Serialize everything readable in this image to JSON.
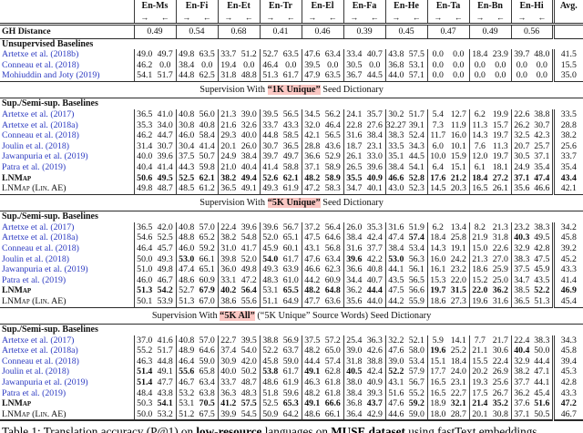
{
  "table": {
    "pairs": [
      "En-Ms",
      "En-Fi",
      "En-Et",
      "En-Tr",
      "En-El",
      "En-Fa",
      "En-He",
      "En-Ta",
      "En-Bn",
      "En-Hi"
    ],
    "avg_label": "Avg.",
    "arrow_right": "→",
    "arrow_left": "←",
    "gh": {
      "label": "GH Distance",
      "values": [
        "0.49",
        "0.54",
        "0.68",
        "0.41",
        "0.46",
        "0.39",
        "0.45",
        "0.47",
        "0.49",
        "0.56"
      ]
    },
    "stream": [
      {
        "type": "group",
        "label": "Unsupervised Baselines"
      },
      {
        "type": "row",
        "label": "Artetxe et al. (2018b)",
        "cite": true,
        "v": [
          "49.0",
          "49.7",
          "49.8",
          "63.5",
          "33.7",
          "51.2",
          "52.7",
          "63.5",
          "47.6",
          "63.4",
          "33.4",
          "40.7",
          "43.8",
          "57.5",
          "0.0",
          "0.0",
          "18.4",
          "23.9",
          "39.7",
          "48.0",
          "41.5"
        ]
      },
      {
        "type": "row",
        "label": "Conneau et al. (2018)",
        "cite": true,
        "v": [
          "46.2",
          "0.0",
          "38.4",
          "0.0",
          "19.4",
          "0.0",
          "46.4",
          "0.0",
          "39.5",
          "0.0",
          "30.5",
          "0.0",
          "36.8",
          "53.1",
          "0.0",
          "0.0",
          "0.0",
          "0.0",
          "0.0",
          "0.0",
          "15.5"
        ]
      },
      {
        "type": "row",
        "label": "Mohiuddin and Joty (2019)",
        "cite": true,
        "v": [
          "54.1",
          "51.7",
          "44.8",
          "62.5",
          "31.8",
          "48.8",
          "51.3",
          "61.7",
          "47.9",
          "63.5",
          "36.7",
          "44.5",
          "44.0",
          "57.1",
          "0.0",
          "0.0",
          "0.0",
          "0.0",
          "0.0",
          "0.0",
          "35.0"
        ]
      },
      {
        "type": "banner",
        "pre": "Supervision With ",
        "hl": "“1K Unique”",
        "post": " Seed Dictionary"
      },
      {
        "type": "group",
        "label": "Sup./Semi-sup. Baselines"
      },
      {
        "type": "row",
        "label": "Artetxe et al. (2017)",
        "cite": true,
        "v": [
          "36.5",
          "41.0",
          "40.8",
          "56.0",
          "21.3",
          "39.0",
          "39.5",
          "56.5",
          "34.5",
          "56.2",
          "24.1",
          "35.7",
          "30.2",
          "51.7",
          "5.4",
          "12.7",
          "6.2",
          "19.9",
          "22.6",
          "38.8",
          "33.5"
        ]
      },
      {
        "type": "row",
        "label": "Artetxe et al. (2018a)",
        "cite": true,
        "v": [
          "35.3",
          "34.0",
          "30.8",
          "40.8",
          "21.6",
          "32.6",
          "33.7",
          "43.3",
          "32.0",
          "46.4",
          "22.8",
          "27.6",
          "32.27",
          "39.1",
          "7.3",
          "11.9",
          "11.3",
          "15.7",
          "26.2",
          "30.7",
          "28.8"
        ]
      },
      {
        "type": "row",
        "label": "Conneau et al. (2018)",
        "cite": true,
        "v": [
          "46.2",
          "44.7",
          "46.0",
          "58.4",
          "29.3",
          "40.0",
          "44.8",
          "58.5",
          "42.1",
          "56.5",
          "31.6",
          "38.4",
          "38.3",
          "52.4",
          "11.7",
          "16.0",
          "14.3",
          "19.7",
          "32.5",
          "42.3",
          "38.2"
        ]
      },
      {
        "type": "row",
        "label": "Joulin et al. (2018)",
        "cite": true,
        "v": [
          "31.4",
          "30.7",
          "30.4",
          "41.4",
          "20.1",
          "26.0",
          "30.7",
          "36.5",
          "28.8",
          "43.6",
          "18.7",
          "23.1",
          "33.5",
          "34.3",
          "6.0",
          "10.1",
          "7.6",
          "11.3",
          "20.7",
          "25.7",
          "25.6"
        ]
      },
      {
        "type": "row",
        "label": "Jawanpuria et al. (2019)",
        "cite": true,
        "v": [
          "40.0",
          "39.6",
          "37.5",
          "50.7",
          "24.9",
          "38.4",
          "39.7",
          "49.7",
          "36.6",
          "52.9",
          "26.1",
          "33.0",
          "35.1",
          "44.5",
          "10.0",
          "15.9",
          "12.0",
          "19.7",
          "30.5",
          "37.1",
          "33.7"
        ]
      },
      {
        "type": "row",
        "label": "Patra et al. (2019)",
        "cite": true,
        "v": [
          "40.4",
          "41.4",
          "44.3",
          "59.8",
          "21.0",
          "40.4",
          "41.4",
          "58.8",
          "37.1",
          "58.9",
          "26.5",
          "39.6",
          "38.4",
          "54.1",
          "6.4",
          "15.1",
          "6.1",
          "18.1",
          "24.9",
          "35.4",
          "35.4"
        ]
      },
      {
        "type": "row",
        "label": "LNMap",
        "sc": true,
        "bold_label": true,
        "v": [
          "50.6",
          "49.5",
          "52.5",
          "62.1",
          "38.2",
          "49.4",
          "52.6",
          "62.1",
          "48.2",
          "58.9",
          "35.5",
          "40.9",
          "46.6",
          "52.8",
          "17.6",
          "21.2",
          "18.4",
          "27.2",
          "37.1",
          "47.4",
          "43.4"
        ],
        "b": [
          0,
          1,
          2,
          3,
          4,
          5,
          6,
          7,
          8,
          9,
          10,
          11,
          12,
          13,
          14,
          15,
          16,
          17,
          18,
          19,
          20
        ]
      },
      {
        "type": "row",
        "label": "LNMap (Lin. AE)",
        "sc": true,
        "v": [
          "49.8",
          "48.7",
          "48.5",
          "61.2",
          "36.5",
          "49.1",
          "49.3",
          "61.9",
          "47.2",
          "58.3",
          "34.7",
          "40.1",
          "43.0",
          "52.3",
          "14.5",
          "20.3",
          "16.5",
          "26.1",
          "35.6",
          "46.6",
          "42.1"
        ]
      },
      {
        "type": "banner",
        "pre": "Supervision With ",
        "hl": "“5K Unique”",
        "post": " Seed Dictionary"
      },
      {
        "type": "group",
        "label": "Sup./Semi-sup. Baselines"
      },
      {
        "type": "row",
        "label": "Artetxe et al. (2017)",
        "cite": true,
        "v": [
          "36.5",
          "42.0",
          "40.8",
          "57.0",
          "22.4",
          "39.6",
          "39.6",
          "56.7",
          "37.2",
          "56.4",
          "26.0",
          "35.3",
          "31.6",
          "51.9",
          "6.2",
          "13.4",
          "8.2",
          "21.3",
          "23.2",
          "38.3",
          "34.2"
        ]
      },
      {
        "type": "row",
        "label": "Artetxe et al. (2018a)",
        "cite": true,
        "v": [
          "54.6",
          "52.5",
          "48.8",
          "65.2",
          "38.2",
          "54.8",
          "52.0",
          "65.1",
          "47.5",
          "64.6",
          "38.4",
          "42.4",
          "47.4",
          "57.4",
          "18.4",
          "25.8",
          "21.9",
          "31.8",
          "40.3",
          "49.5",
          "45.8"
        ],
        "b": [
          13,
          18
        ]
      },
      {
        "type": "row",
        "label": "Conneau et al. (2018)",
        "cite": true,
        "v": [
          "46.4",
          "45.7",
          "46.0",
          "59.2",
          "31.0",
          "41.7",
          "45.9",
          "60.1",
          "43.1",
          "56.8",
          "31.6",
          "37.7",
          "38.4",
          "53.4",
          "14.3",
          "19.1",
          "15.0",
          "22.6",
          "32.9",
          "42.8",
          "39.2"
        ]
      },
      {
        "type": "row",
        "label": "Joulin et al. (2018)",
        "cite": true,
        "v": [
          "50.0",
          "49.3",
          "53.0",
          "66.1",
          "39.8",
          "52.0",
          "54.0",
          "61.7",
          "47.6",
          "63.4",
          "39.6",
          "42.2",
          "53.0",
          "56.3",
          "16.0",
          "24.2",
          "21.3",
          "27.0",
          "38.3",
          "47.5",
          "45.2"
        ],
        "b": [
          2,
          6,
          10,
          12
        ]
      },
      {
        "type": "row",
        "label": "Jawanpuria et al. (2019)",
        "cite": true,
        "v": [
          "51.0",
          "49.8",
          "47.4",
          "65.1",
          "36.0",
          "49.8",
          "49.3",
          "63.9",
          "46.6",
          "62.3",
          "36.6",
          "40.8",
          "44.1",
          "56.1",
          "16.1",
          "23.2",
          "18.6",
          "25.9",
          "37.5",
          "45.9",
          "43.3"
        ]
      },
      {
        "type": "row",
        "label": "Patra et al. (2019)",
        "cite": true,
        "v": [
          "46.0",
          "46.7",
          "48.6",
          "60.9",
          "33.1",
          "47.2",
          "48.3",
          "61.0",
          "44.2",
          "60.9",
          "34.4",
          "40.7",
          "43.5",
          "56.5",
          "15.3",
          "22.0",
          "15.2",
          "25.0",
          "34.7",
          "43.5",
          "41.4"
        ]
      },
      {
        "type": "row",
        "label": "LNMap",
        "sc": true,
        "bold_label": true,
        "v": [
          "51.3",
          "54.2",
          "52.7",
          "67.9",
          "40.2",
          "56.4",
          "53.1",
          "65.5",
          "48.2",
          "64.8",
          "36.2",
          "44.4",
          "47.5",
          "56.6",
          "19.7",
          "31.5",
          "22.0",
          "36.2",
          "38.5",
          "52.2",
          "46.9"
        ],
        "b": [
          0,
          1,
          3,
          4,
          5,
          7,
          8,
          9,
          11,
          14,
          15,
          16,
          17,
          19,
          20
        ]
      },
      {
        "type": "row",
        "label": "LNMap (Lin. AE)",
        "sc": true,
        "v": [
          "50.1",
          "53.9",
          "51.3",
          "67.0",
          "38.6",
          "55.6",
          "51.1",
          "64.9",
          "47.7",
          "63.6",
          "35.6",
          "44.0",
          "44.2",
          "55.9",
          "18.6",
          "27.3",
          "19.6",
          "31.6",
          "36.5",
          "51.3",
          "45.4"
        ]
      },
      {
        "type": "banner",
        "pre": "Supervision With ",
        "hl": "“5K All”",
        "post": " (“5K Unique” Source Words) Seed Dictionary"
      },
      {
        "type": "group",
        "label": "Sup./Semi-sup. Baselines"
      },
      {
        "type": "row",
        "label": "Artetxe et al. (2017)",
        "cite": true,
        "v": [
          "37.0",
          "41.6",
          "40.8",
          "57.0",
          "22.7",
          "39.5",
          "38.8",
          "56.9",
          "37.5",
          "57.2",
          "25.4",
          "36.3",
          "32.2",
          "52.1",
          "5.9",
          "14.1",
          "7.7",
          "21.7",
          "22.4",
          "38.3",
          "34.3"
        ]
      },
      {
        "type": "row",
        "label": "Artetxe et al. (2018a)",
        "cite": true,
        "v": [
          "55.2",
          "51.7",
          "48.9",
          "64.6",
          "37.4",
          "54.0",
          "52.2",
          "63.7",
          "48.2",
          "65.0",
          "39.0",
          "42.6",
          "47.6",
          "58.0",
          "19.6",
          "25.2",
          "21.1",
          "30.6",
          "40.4",
          "50.0",
          "45.8"
        ],
        "b": [
          14,
          18
        ]
      },
      {
        "type": "row",
        "label": "Conneau et al. (2018)",
        "cite": true,
        "v": [
          "46.3",
          "44.8",
          "46.4",
          "59.0",
          "30.9",
          "42.0",
          "45.8",
          "59.0",
          "44.4",
          "57.4",
          "31.8",
          "38.8",
          "39.0",
          "53.4",
          "15.1",
          "18.4",
          "15.5",
          "22.4",
          "32.9",
          "44.4",
          "39.4"
        ]
      },
      {
        "type": "row",
        "label": "Joulin et al. (2018)",
        "cite": true,
        "v": [
          "51.4",
          "49.1",
          "55.6",
          "65.8",
          "40.0",
          "50.2",
          "53.8",
          "61.7",
          "49.1",
          "62.8",
          "40.5",
          "42.4",
          "52.2",
          "57.9",
          "17.7",
          "24.0",
          "20.2",
          "26.9",
          "38.2",
          "47.1",
          "45.3"
        ],
        "b": [
          0,
          2,
          6,
          8,
          10,
          12
        ]
      },
      {
        "type": "row",
        "label": "Jawanpuria et al. (2019)",
        "cite": true,
        "v": [
          "51.4",
          "47.7",
          "46.7",
          "63.4",
          "33.7",
          "48.7",
          "48.6",
          "61.9",
          "46.3",
          "61.8",
          "38.0",
          "40.9",
          "43.1",
          "56.7",
          "16.5",
          "23.1",
          "19.3",
          "25.6",
          "37.7",
          "44.1",
          "42.8"
        ],
        "b": [
          0
        ]
      },
      {
        "type": "row",
        "label": "Patra et al. (2019)",
        "cite": true,
        "v": [
          "48.4",
          "43.8",
          "53.2",
          "63.8",
          "36.3",
          "48.3",
          "51.8",
          "59.6",
          "48.2",
          "61.8",
          "38.4",
          "39.3",
          "51.6",
          "55.2",
          "16.5",
          "22.7",
          "17.5",
          "26.7",
          "36.2",
          "45.4",
          "43.3"
        ]
      },
      {
        "type": "row",
        "label": "LNMap",
        "sc": true,
        "bold_label": true,
        "v": [
          "50.3",
          "54.1",
          "53.1",
          "70.5",
          "41.2",
          "57.5",
          "52.5",
          "65.3",
          "49.1",
          "66.6",
          "36.8",
          "43.7",
          "47.6",
          "59.2",
          "18.9",
          "32.1",
          "21.4",
          "35.2",
          "37.6",
          "51.6",
          "47.2"
        ],
        "b": [
          1,
          3,
          4,
          5,
          7,
          8,
          9,
          11,
          13,
          15,
          16,
          17,
          19,
          20
        ]
      },
      {
        "type": "row",
        "label": "LNMap (Lin. AE)",
        "sc": true,
        "v": [
          "50.0",
          "53.2",
          "51.2",
          "67.5",
          "39.9",
          "54.5",
          "50.9",
          "64.2",
          "48.6",
          "66.1",
          "36.4",
          "42.9",
          "44.6",
          "59.0",
          "18.0",
          "28.7",
          "20.1",
          "30.8",
          "37.1",
          "50.5",
          "46.7"
        ]
      }
    ]
  },
  "caption": {
    "part1": "Table 1: Translation accuracy (P@1) on ",
    "bold1": "low-resource",
    "part2": " languages on ",
    "bold2": "MUSE dataset",
    "part3": " using fastText embeddings"
  }
}
